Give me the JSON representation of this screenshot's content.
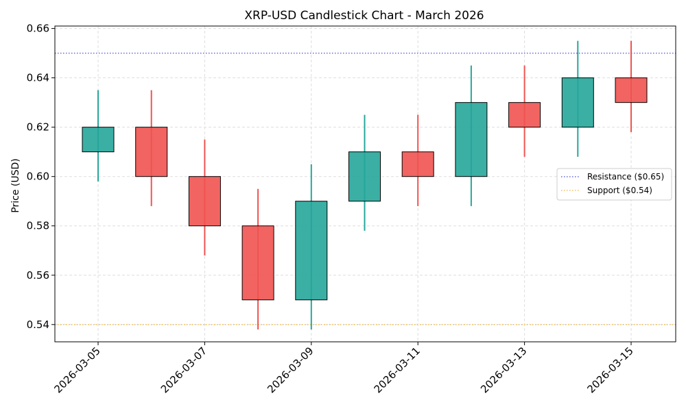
{
  "chart_data": {
    "type": "candlestick",
    "title": "XRP-USD Candlestick Chart - March 2026",
    "xlabel": "",
    "ylabel": "Price (USD)",
    "ylim": [
      0.533,
      0.661
    ],
    "y_ticks": [
      0.54,
      0.56,
      0.58,
      0.6,
      0.62,
      0.64,
      0.66
    ],
    "y_tick_labels": [
      "0.54",
      "0.56",
      "0.58",
      "0.60",
      "0.62",
      "0.64",
      "0.66"
    ],
    "x_tick_labels": [
      "2026-03-05",
      "2026-03-07",
      "2026-03-09",
      "2026-03-11",
      "2026-03-13",
      "2026-03-15"
    ],
    "x_tick_dates": [
      "2026-03-05",
      "2026-03-07",
      "2026-03-09",
      "2026-03-11",
      "2026-03-13",
      "2026-03-15"
    ],
    "grid": true,
    "candles": [
      {
        "date": "2026-03-05",
        "open": 0.61,
        "high": 0.635,
        "low": 0.598,
        "close": 0.62
      },
      {
        "date": "2026-03-06",
        "open": 0.62,
        "high": 0.635,
        "low": 0.588,
        "close": 0.6
      },
      {
        "date": "2026-03-07",
        "open": 0.6,
        "high": 0.615,
        "low": 0.568,
        "close": 0.58
      },
      {
        "date": "2026-03-08",
        "open": 0.58,
        "high": 0.595,
        "low": 0.538,
        "close": 0.55
      },
      {
        "date": "2026-03-09",
        "open": 0.55,
        "high": 0.605,
        "low": 0.538,
        "close": 0.59
      },
      {
        "date": "2026-03-10",
        "open": 0.59,
        "high": 0.625,
        "low": 0.578,
        "close": 0.61
      },
      {
        "date": "2026-03-11",
        "open": 0.61,
        "high": 0.625,
        "low": 0.588,
        "close": 0.6
      },
      {
        "date": "2026-03-12",
        "open": 0.6,
        "high": 0.645,
        "low": 0.588,
        "close": 0.63
      },
      {
        "date": "2026-03-13",
        "open": 0.63,
        "high": 0.645,
        "low": 0.608,
        "close": 0.62
      },
      {
        "date": "2026-03-14",
        "open": 0.62,
        "high": 0.655,
        "low": 0.608,
        "close": 0.64
      },
      {
        "date": "2026-03-15",
        "open": 0.64,
        "high": 0.655,
        "low": 0.618,
        "close": 0.63
      }
    ],
    "reference_lines": [
      {
        "name": "Resistance ($0.65)",
        "value": 0.65,
        "color": "#6666dd"
      },
      {
        "name": "Support ($0.54)",
        "value": 0.54,
        "color": "#f0c060"
      }
    ],
    "legend_location": "center-right",
    "colors": {
      "up": "#26a69a",
      "down": "#ef5350",
      "edge": "#000000",
      "grid": "#dddddd"
    }
  }
}
